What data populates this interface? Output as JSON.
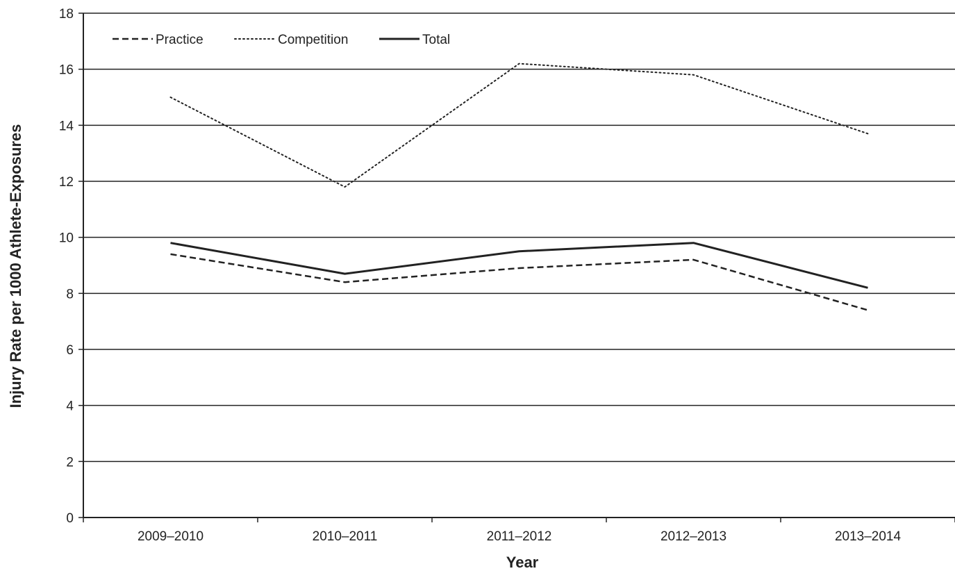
{
  "chart_data": {
    "type": "line",
    "title": "",
    "xlabel": "Year",
    "ylabel": "Injury Rate per 1000 Athlete-Exposures",
    "categories": [
      "2009–2010",
      "2010–2011",
      "2011–2012",
      "2012–2013",
      "2013–2014"
    ],
    "ylim": [
      0,
      18
    ],
    "yticks": [
      0,
      2,
      4,
      6,
      8,
      10,
      12,
      14,
      16,
      18
    ],
    "grid": "horizontal",
    "legend_position": "top-left",
    "series": [
      {
        "name": "Practice",
        "style": "dashed",
        "color": "#222222",
        "values": [
          9.4,
          8.4,
          8.9,
          9.2,
          7.4
        ]
      },
      {
        "name": "Competition",
        "style": "dotted",
        "color": "#222222",
        "values": [
          15.0,
          11.8,
          16.2,
          15.8,
          13.7
        ]
      },
      {
        "name": "Total",
        "style": "solid",
        "color": "#222222",
        "values": [
          9.8,
          8.7,
          9.5,
          9.8,
          8.2
        ]
      }
    ]
  }
}
